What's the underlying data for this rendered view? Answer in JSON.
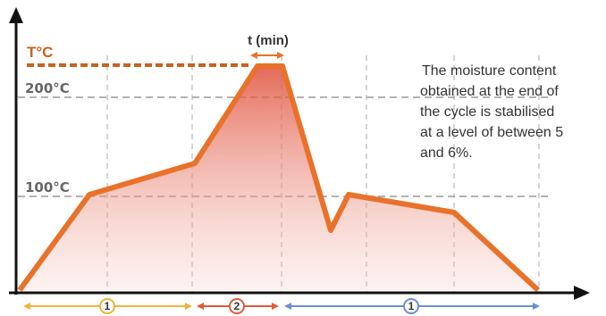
{
  "axis": {
    "y_title": "T°C",
    "time_label": "t (min)",
    "levels": [
      "200°C",
      "100°C"
    ]
  },
  "phases": [
    "1",
    "2",
    "1"
  ],
  "note": [
    "The moisture content",
    "obtained at the end of",
    "the cycle is stabilised",
    "at a level of between 5",
    "and 6%."
  ]
}
